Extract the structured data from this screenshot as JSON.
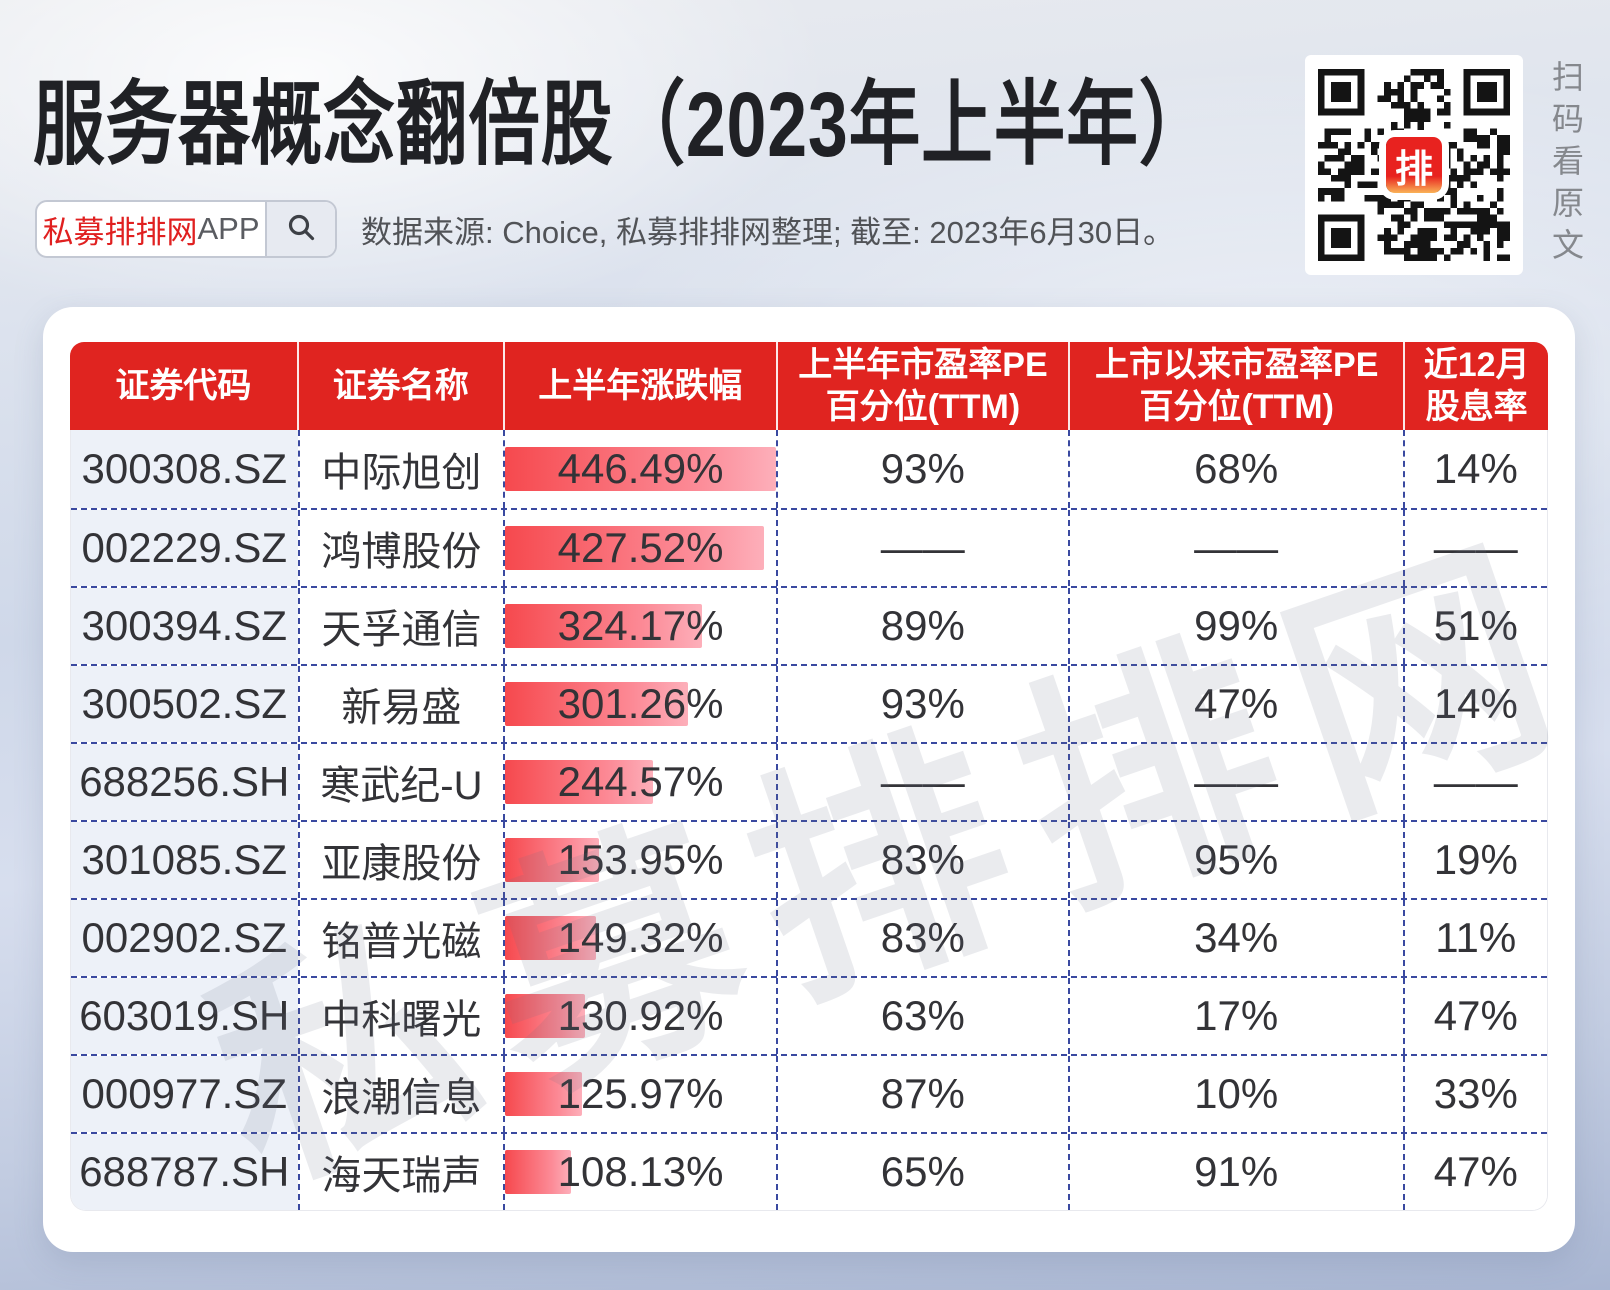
{
  "page": {
    "title": "服务器概念翻倍股（2023年上半年）",
    "app_badge": {
      "brand": "私募排排网",
      "suffix": "APP"
    },
    "source_note": "数据来源: Choice, 私募排排网整理; 截至: 2023年6月30日。",
    "qr_caption": "扫码看原文",
    "qr_logo": "排",
    "watermark": "私募排排网"
  },
  "colors": {
    "header_red": "#e02420",
    "brand_red": "#e02020",
    "bar_gradient_start": "#f6494e",
    "bar_gradient_end": "#fdafba",
    "table_border_blue": "#3a49a0",
    "first_column_bg": "#edf1f8"
  },
  "table": {
    "columns": [
      "证券代码",
      "证券名称",
      "上半年涨跌幅",
      "上半年市盈率PE\n百分位(TTM)",
      "上市以来市盈率PE\n百分位(TTM)",
      "近12月\n股息率"
    ],
    "max_change_pct": 446.49,
    "rows": [
      {
        "code": "300308.SZ",
        "name": "中际旭创",
        "change": "446.49%",
        "change_value": 446.49,
        "pe_half": "93%",
        "pe_listed": "68%",
        "dividend": "14%"
      },
      {
        "code": "002229.SZ",
        "name": "鸿博股份",
        "change": "427.52%",
        "change_value": 427.52,
        "pe_half": "——",
        "pe_listed": "——",
        "dividend": "——"
      },
      {
        "code": "300394.SZ",
        "name": "天孚通信",
        "change": "324.17%",
        "change_value": 324.17,
        "pe_half": "89%",
        "pe_listed": "99%",
        "dividend": "51%"
      },
      {
        "code": "300502.SZ",
        "name": "新易盛",
        "change": "301.26%",
        "change_value": 301.26,
        "pe_half": "93%",
        "pe_listed": "47%",
        "dividend": "14%"
      },
      {
        "code": "688256.SH",
        "name": "寒武纪-U",
        "change": "244.57%",
        "change_value": 244.57,
        "pe_half": "——",
        "pe_listed": "——",
        "dividend": "——"
      },
      {
        "code": "301085.SZ",
        "name": "亚康股份",
        "change": "153.95%",
        "change_value": 153.95,
        "pe_half": "83%",
        "pe_listed": "95%",
        "dividend": "19%"
      },
      {
        "code": "002902.SZ",
        "name": "铭普光磁",
        "change": "149.32%",
        "change_value": 149.32,
        "pe_half": "83%",
        "pe_listed": "34%",
        "dividend": "11%"
      },
      {
        "code": "603019.SH",
        "name": "中科曙光",
        "change": "130.92%",
        "change_value": 130.92,
        "pe_half": "63%",
        "pe_listed": "17%",
        "dividend": "47%"
      },
      {
        "code": "000977.SZ",
        "name": "浪潮信息",
        "change": "125.97%",
        "change_value": 125.97,
        "pe_half": "87%",
        "pe_listed": "10%",
        "dividend": "33%"
      },
      {
        "code": "688787.SH",
        "name": "海天瑞声",
        "change": "108.13%",
        "change_value": 108.13,
        "pe_half": "65%",
        "pe_listed": "91%",
        "dividend": "47%"
      }
    ]
  },
  "chart_data": {
    "type": "table",
    "title": "服务器概念翻倍股（2023年上半年）",
    "subtitle": "数据来源: Choice, 私募排排网整理; 截至: 2023年6月30日。",
    "columns": [
      "证券代码",
      "证券名称",
      "上半年涨跌幅",
      "上半年市盈率PE百分位(TTM)",
      "上市以来市盈率PE百分位(TTM)",
      "近12月股息率"
    ],
    "rows": [
      [
        "300308.SZ",
        "中际旭创",
        "446.49%",
        "93%",
        "68%",
        "14%"
      ],
      [
        "002229.SZ",
        "鸿博股份",
        "427.52%",
        "——",
        "——",
        "——"
      ],
      [
        "300394.SZ",
        "天孚通信",
        "324.17%",
        "89%",
        "99%",
        "51%"
      ],
      [
        "300502.SZ",
        "新易盛",
        "301.26%",
        "93%",
        "47%",
        "14%"
      ],
      [
        "688256.SH",
        "寒武纪-U",
        "244.57%",
        "——",
        "——",
        "——"
      ],
      [
        "301085.SZ",
        "亚康股份",
        "153.95%",
        "83%",
        "95%",
        "19%"
      ],
      [
        "002902.SZ",
        "铭普光磁",
        "149.32%",
        "83%",
        "34%",
        "11%"
      ],
      [
        "603019.SH",
        "中科曙光",
        "130.92%",
        "63%",
        "17%",
        "47%"
      ],
      [
        "000977.SZ",
        "浪潮信息",
        "125.97%",
        "87%",
        "10%",
        "33%"
      ],
      [
        "688787.SH",
        "海天瑞声",
        "108.13%",
        "65%",
        "91%",
        "47%"
      ]
    ],
    "bar_column": "上半年涨跌幅",
    "bar_values": [
      446.49,
      427.52,
      324.17,
      301.26,
      244.57,
      153.95,
      149.32,
      130.92,
      125.97,
      108.13
    ],
    "bar_axis_max": 446.49
  }
}
